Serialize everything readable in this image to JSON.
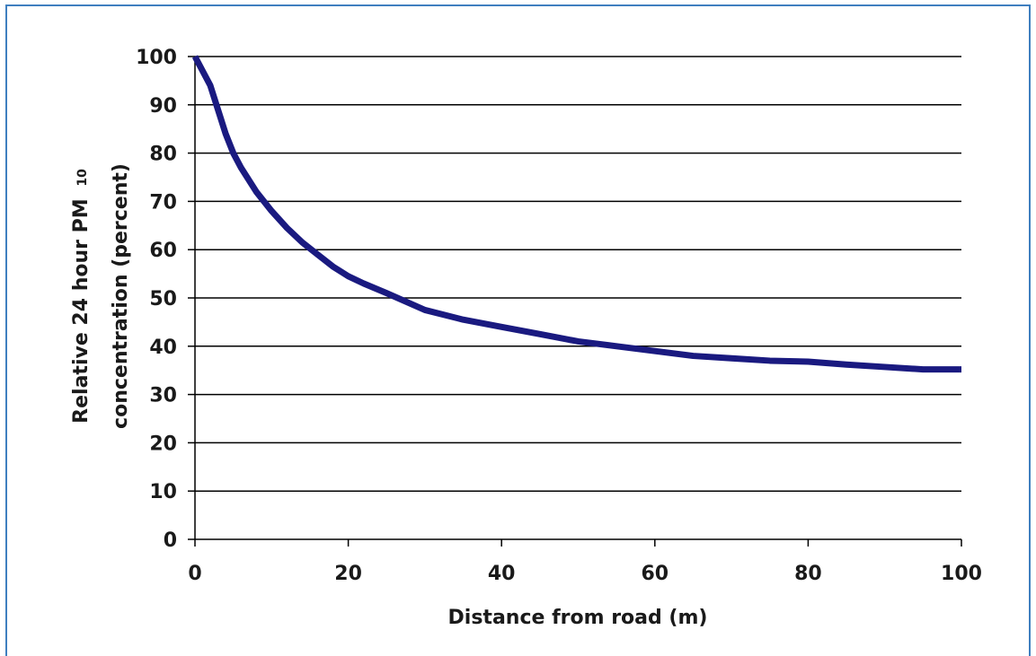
{
  "chart_data": {
    "type": "line",
    "title": "",
    "xlabel": "Distance from road (m)",
    "ylabel_line1": "Relative 24 hour PM",
    "ylabel_subscript": "10",
    "ylabel_line2": "concentration (percent)",
    "xlim": [
      0,
      100
    ],
    "ylim": [
      0,
      100
    ],
    "x_ticks": [
      0,
      20,
      40,
      60,
      80,
      100
    ],
    "y_ticks": [
      0,
      10,
      20,
      30,
      40,
      50,
      60,
      70,
      80,
      90,
      100
    ],
    "grid": "horizontal",
    "series": [
      {
        "color": "#1a1a80",
        "x": [
          0,
          1,
          2,
          3,
          4,
          5,
          6,
          8,
          10,
          12,
          14,
          16,
          18,
          20,
          22,
          25,
          30,
          35,
          40,
          45,
          50,
          55,
          60,
          65,
          70,
          75,
          80,
          85,
          90,
          95,
          100
        ],
        "y": [
          100,
          97,
          94,
          89,
          84,
          80,
          77,
          72,
          68,
          64.5,
          61.5,
          59,
          56.5,
          54.5,
          53,
          51,
          47.5,
          45.5,
          44,
          42.5,
          41,
          40,
          39,
          38,
          37.5,
          37,
          36.8,
          36.2,
          35.7,
          35.2,
          35.2
        ]
      }
    ]
  }
}
